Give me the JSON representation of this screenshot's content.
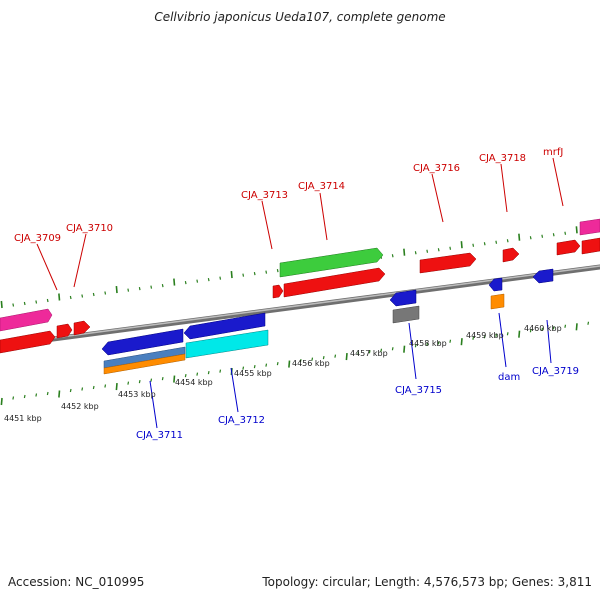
{
  "title": "Cellvibrio japonicus Ueda107, complete genome",
  "footer": {
    "accession": "Accession: NC_010995",
    "stats": "Topology: circular; Length: 4,576,573 bp; Genes: 3,811"
  },
  "colors": {
    "forward_label": "#cc0000",
    "reverse_label": "#0000cc",
    "tick": "#2a7f1e",
    "backbone": "#8a8a8a"
  },
  "kbp_labels": [
    "4451 kbp",
    "4452 kbp",
    "4453 kbp",
    "4454 kbp",
    "4455 kbp",
    "4456 kbp",
    "4457 kbp",
    "4458 kbp",
    "4459 kbp",
    "4460 kbp"
  ],
  "gene_labels_forward": [
    "CJA_3709",
    "CJA_3710",
    "CJA_3713",
    "CJA_3714",
    "CJA_3716",
    "CJA_3718",
    "mrfJ"
  ],
  "gene_labels_reverse": [
    "CJA_3711",
    "CJA_3712",
    "CJA_3715",
    "dam",
    "CJA_3719"
  ]
}
